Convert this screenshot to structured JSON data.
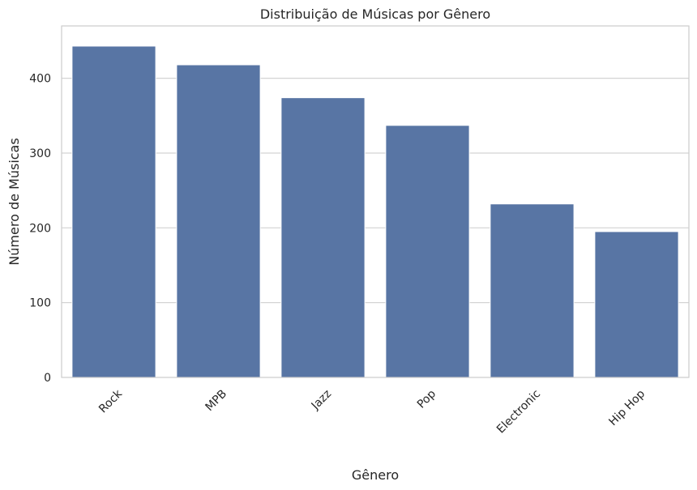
{
  "chart_data": {
    "type": "bar",
    "title": "Distribuição de Músicas por Gênero",
    "xlabel": "Gênero",
    "ylabel": "Número de Músicas",
    "categories": [
      "Rock",
      "MPB",
      "Jazz",
      "Pop",
      "Electronic",
      "Hip Hop"
    ],
    "values": [
      443,
      418,
      374,
      337,
      232,
      195
    ],
    "ylim": [
      0,
      470
    ],
    "yticks": [
      0,
      100,
      200,
      300,
      400
    ],
    "grid": "horizontal",
    "bar_color": "#5875a4"
  }
}
